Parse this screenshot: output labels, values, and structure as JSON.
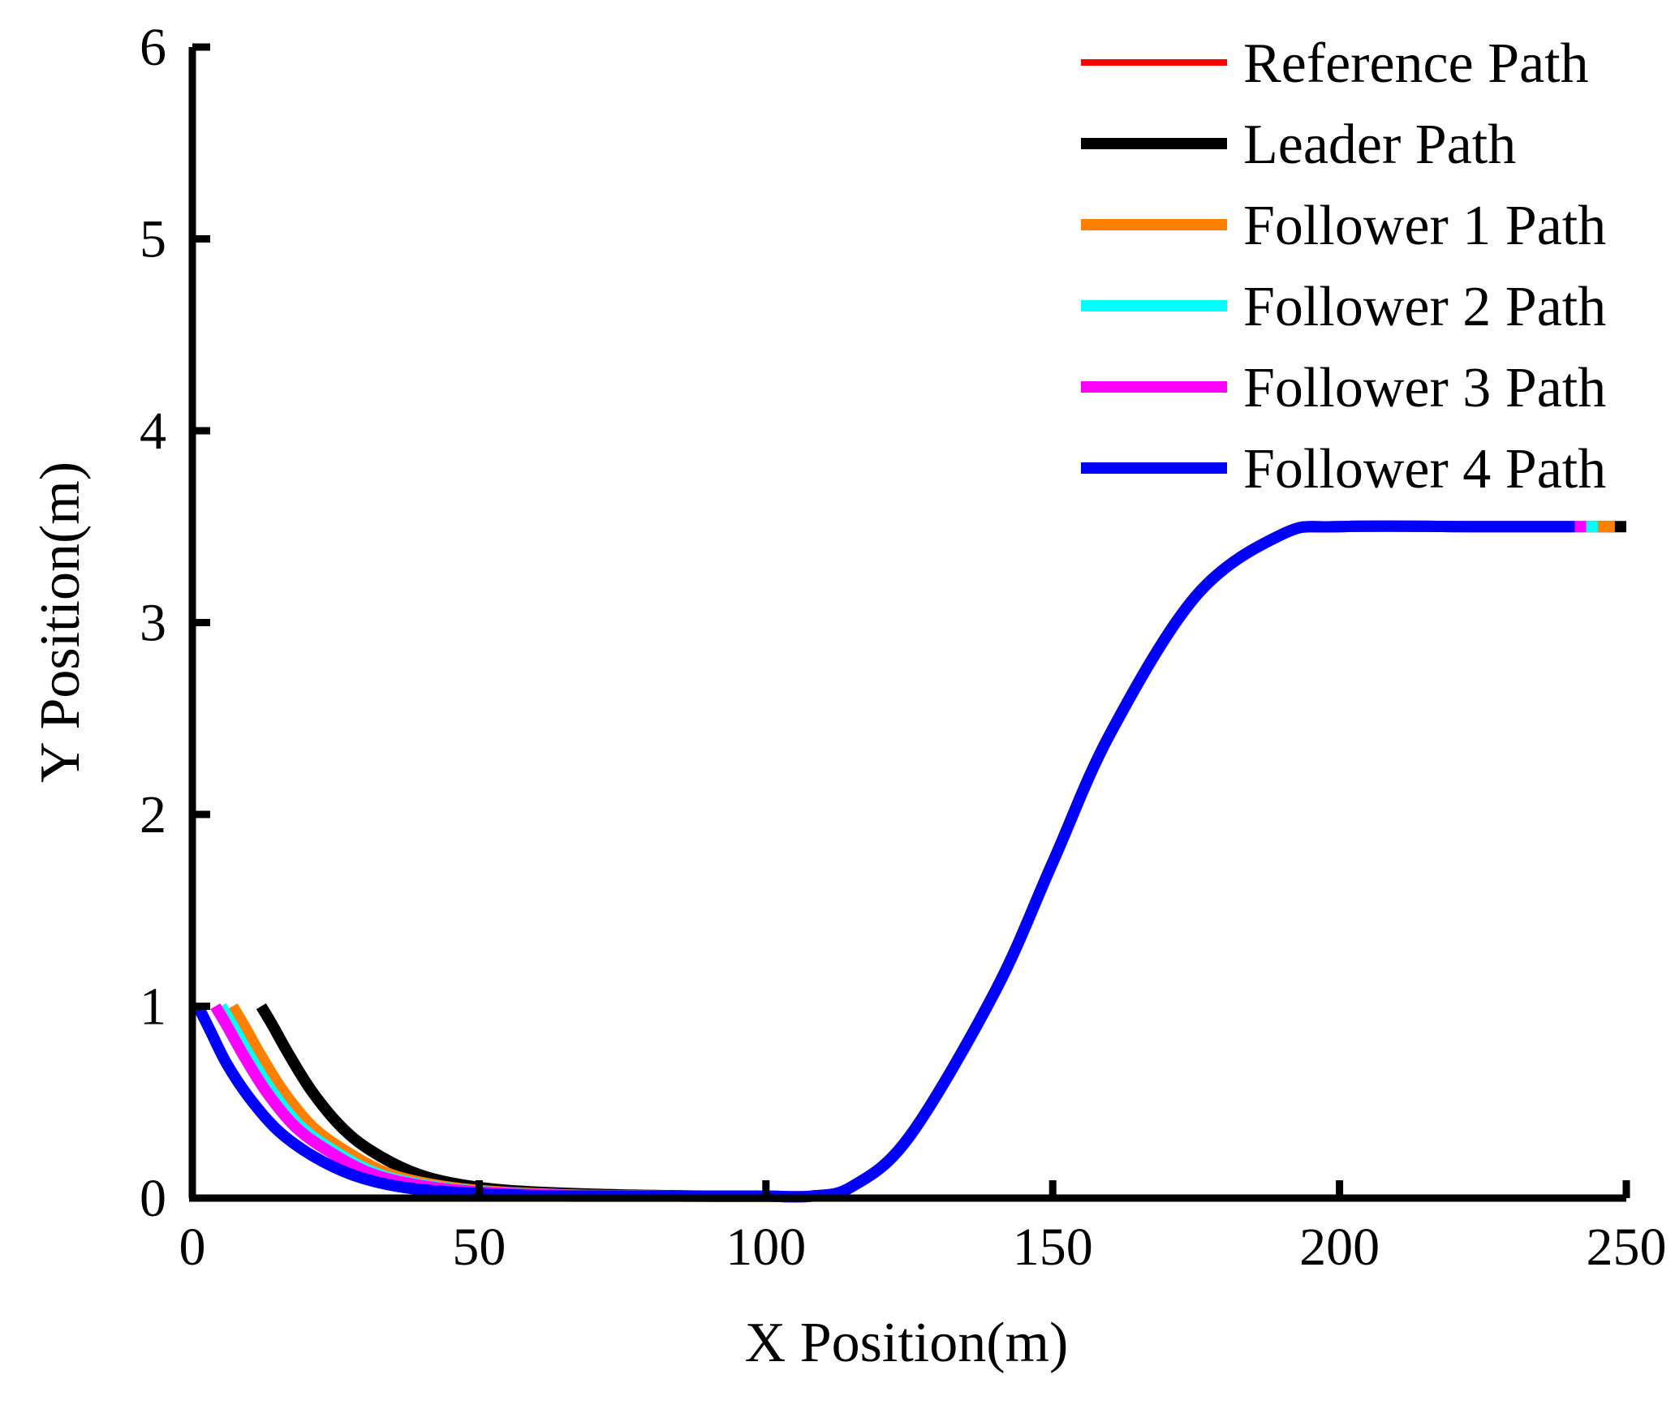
{
  "chart_data": {
    "type": "line",
    "title": "",
    "xlabel": "X Position(m)",
    "ylabel": "Y Position(m)",
    "xlim": [
      0,
      250
    ],
    "ylim": [
      0,
      6
    ],
    "xticks": [
      0,
      50,
      100,
      150,
      200,
      250
    ],
    "yticks": [
      0,
      1,
      2,
      3,
      4,
      5,
      6
    ],
    "grid": false,
    "legend_position": "top-right",
    "series": [
      {
        "name": "Reference Path",
        "color": "#ff0000",
        "x": [
          0,
          20,
          50,
          100,
          108,
          115,
          125,
          140,
          150,
          160,
          175,
          190,
          200,
          225,
          250
        ],
        "y": [
          0,
          0,
          0,
          0,
          0.01,
          0.06,
          0.32,
          1.08,
          1.75,
          2.42,
          3.14,
          3.46,
          3.5,
          3.5,
          3.5
        ]
      },
      {
        "name": "Leader Path",
        "color": "#000000",
        "x": [
          12,
          14,
          17,
          21,
          26,
          31,
          38,
          45,
          55,
          70,
          90,
          100,
          108,
          115,
          125,
          140,
          150,
          160,
          175,
          190,
          200,
          225,
          250
        ],
        "y": [
          1.0,
          0.9,
          0.74,
          0.55,
          0.37,
          0.25,
          0.14,
          0.08,
          0.04,
          0.02,
          0.01,
          0.01,
          0.01,
          0.06,
          0.32,
          1.08,
          1.75,
          2.42,
          3.14,
          3.46,
          3.5,
          3.5,
          3.5
        ]
      },
      {
        "name": "Follower 1 Path",
        "color": "#ff8000",
        "x": [
          7,
          9,
          12,
          16,
          21,
          27,
          34,
          42,
          52,
          68,
          90,
          100,
          108,
          115,
          125,
          140,
          150,
          160,
          175,
          190,
          200,
          225,
          248
        ],
        "y": [
          1.0,
          0.9,
          0.74,
          0.55,
          0.37,
          0.24,
          0.13,
          0.07,
          0.035,
          0.015,
          0.01,
          0.01,
          0.01,
          0.06,
          0.32,
          1.08,
          1.75,
          2.42,
          3.14,
          3.46,
          3.5,
          3.5,
          3.5
        ]
      },
      {
        "name": "Follower 2 Path",
        "color": "#00ffff",
        "x": [
          5,
          7,
          10,
          14,
          19,
          25,
          32,
          40,
          50,
          66,
          90,
          100,
          108,
          115,
          125,
          140,
          150,
          160,
          175,
          190,
          200,
          225,
          245
        ],
        "y": [
          1.0,
          0.9,
          0.74,
          0.55,
          0.37,
          0.24,
          0.13,
          0.07,
          0.035,
          0.015,
          0.01,
          0.01,
          0.01,
          0.06,
          0.32,
          1.08,
          1.75,
          2.42,
          3.14,
          3.46,
          3.5,
          3.5,
          3.5
        ]
      },
      {
        "name": "Follower 3 Path",
        "color": "#ff00ff",
        "x": [
          4,
          6,
          9,
          13,
          18,
          24,
          31,
          39,
          49,
          65,
          90,
          100,
          108,
          115,
          125,
          140,
          150,
          160,
          175,
          190,
          200,
          225,
          243
        ],
        "y": [
          1.0,
          0.9,
          0.74,
          0.55,
          0.37,
          0.24,
          0.13,
          0.07,
          0.035,
          0.015,
          0.01,
          0.01,
          0.01,
          0.06,
          0.32,
          1.08,
          1.75,
          2.42,
          3.14,
          3.46,
          3.5,
          3.5,
          3.5
        ]
      },
      {
        "name": "Follower 4 Path",
        "color": "#0000ff",
        "x": [
          1,
          3,
          6,
          10,
          15,
          21,
          28,
          36,
          46,
          62,
          90,
          100,
          108,
          115,
          125,
          140,
          150,
          160,
          175,
          190,
          200,
          225,
          241
        ],
        "y": [
          1.0,
          0.88,
          0.7,
          0.52,
          0.35,
          0.22,
          0.12,
          0.06,
          0.03,
          0.012,
          0.01,
          0.01,
          0.01,
          0.06,
          0.32,
          1.08,
          1.75,
          2.42,
          3.14,
          3.46,
          3.5,
          3.5,
          3.5
        ]
      }
    ]
  }
}
